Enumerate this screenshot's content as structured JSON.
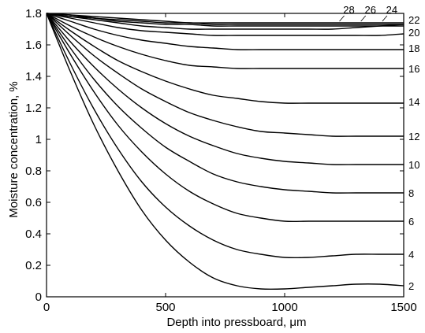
{
  "chart_data": {
    "type": "line",
    "title": "",
    "xlabel": "Depth into pressboard, μm",
    "ylabel": "Moisture concentration, %",
    "xlim": [
      0,
      1500
    ],
    "ylim": [
      0,
      1.8
    ],
    "xticks": [
      0,
      500,
      1000,
      1500
    ],
    "xtick_labels": [
      "0",
      "500",
      "1000",
      "1500"
    ],
    "yticks": [
      0,
      0.2,
      0.4,
      0.6,
      0.8,
      1,
      1.2,
      1.4,
      1.6,
      1.8
    ],
    "ytick_labels": [
      "0",
      "0.2",
      "0.4",
      "0.6",
      "0.8",
      "1",
      "1.2",
      "1.4",
      "1.6",
      "1.8"
    ],
    "grid": false,
    "legend": "none",
    "line_color": "#000000",
    "x": [
      0,
      100,
      200,
      300,
      400,
      500,
      600,
      700,
      800,
      900,
      1000,
      1100,
      1200,
      1300,
      1400,
      1500
    ],
    "series": [
      {
        "label": "2",
        "values": [
          1.8,
          1.43,
          1.09,
          0.8,
          0.55,
          0.36,
          0.22,
          0.12,
          0.07,
          0.05,
          0.05,
          0.06,
          0.07,
          0.08,
          0.08,
          0.07
        ]
      },
      {
        "label": "4",
        "values": [
          1.8,
          1.48,
          1.19,
          0.94,
          0.73,
          0.57,
          0.45,
          0.36,
          0.3,
          0.27,
          0.25,
          0.25,
          0.26,
          0.27,
          0.27,
          0.27
        ]
      },
      {
        "label": "6",
        "values": [
          1.8,
          1.54,
          1.3,
          1.09,
          0.92,
          0.78,
          0.67,
          0.59,
          0.53,
          0.5,
          0.48,
          0.48,
          0.48,
          0.48,
          0.48,
          0.48
        ]
      },
      {
        "label": "8",
        "values": [
          1.8,
          1.58,
          1.38,
          1.21,
          1.07,
          0.95,
          0.86,
          0.78,
          0.73,
          0.7,
          0.68,
          0.67,
          0.66,
          0.66,
          0.66,
          0.66
        ]
      },
      {
        "label": "10",
        "values": [
          1.8,
          1.62,
          1.46,
          1.32,
          1.2,
          1.1,
          1.02,
          0.96,
          0.91,
          0.88,
          0.86,
          0.85,
          0.84,
          0.84,
          0.84,
          0.84
        ]
      },
      {
        "label": "12",
        "values": [
          1.8,
          1.66,
          1.53,
          1.42,
          1.32,
          1.24,
          1.17,
          1.12,
          1.08,
          1.05,
          1.04,
          1.03,
          1.02,
          1.02,
          1.02,
          1.02
        ]
      },
      {
        "label": "14",
        "values": [
          1.8,
          1.69,
          1.59,
          1.5,
          1.43,
          1.37,
          1.32,
          1.28,
          1.26,
          1.24,
          1.23,
          1.23,
          1.23,
          1.23,
          1.23,
          1.23
        ]
      },
      {
        "label": "16",
        "values": [
          1.8,
          1.72,
          1.65,
          1.59,
          1.54,
          1.5,
          1.47,
          1.46,
          1.45,
          1.45,
          1.45,
          1.45,
          1.45,
          1.45,
          1.45,
          1.45
        ]
      },
      {
        "label": "18",
        "values": [
          1.8,
          1.75,
          1.7,
          1.66,
          1.63,
          1.61,
          1.59,
          1.58,
          1.57,
          1.57,
          1.57,
          1.57,
          1.57,
          1.57,
          1.57,
          1.57
        ]
      },
      {
        "label": "20",
        "values": [
          1.8,
          1.77,
          1.74,
          1.71,
          1.69,
          1.68,
          1.67,
          1.66,
          1.66,
          1.66,
          1.66,
          1.66,
          1.66,
          1.66,
          1.66,
          1.67
        ]
      },
      {
        "label": "22",
        "values": [
          1.8,
          1.78,
          1.76,
          1.74,
          1.72,
          1.71,
          1.7,
          1.7,
          1.7,
          1.7,
          1.7,
          1.7,
          1.7,
          1.71,
          1.72,
          1.73
        ]
      },
      {
        "label": "24",
        "values": [
          1.8,
          1.78,
          1.77,
          1.75,
          1.74,
          1.73,
          1.73,
          1.72,
          1.72,
          1.72,
          1.72,
          1.72,
          1.72,
          1.72,
          1.72,
          1.72
        ]
      },
      {
        "label": "26",
        "values": [
          1.8,
          1.79,
          1.77,
          1.76,
          1.75,
          1.74,
          1.74,
          1.73,
          1.73,
          1.73,
          1.73,
          1.73,
          1.73,
          1.73,
          1.73,
          1.73
        ]
      },
      {
        "label": "28",
        "values": [
          1.8,
          1.79,
          1.78,
          1.77,
          1.76,
          1.75,
          1.74,
          1.74,
          1.74,
          1.74,
          1.74,
          1.74,
          1.74,
          1.74,
          1.74,
          1.74
        ]
      }
    ]
  }
}
